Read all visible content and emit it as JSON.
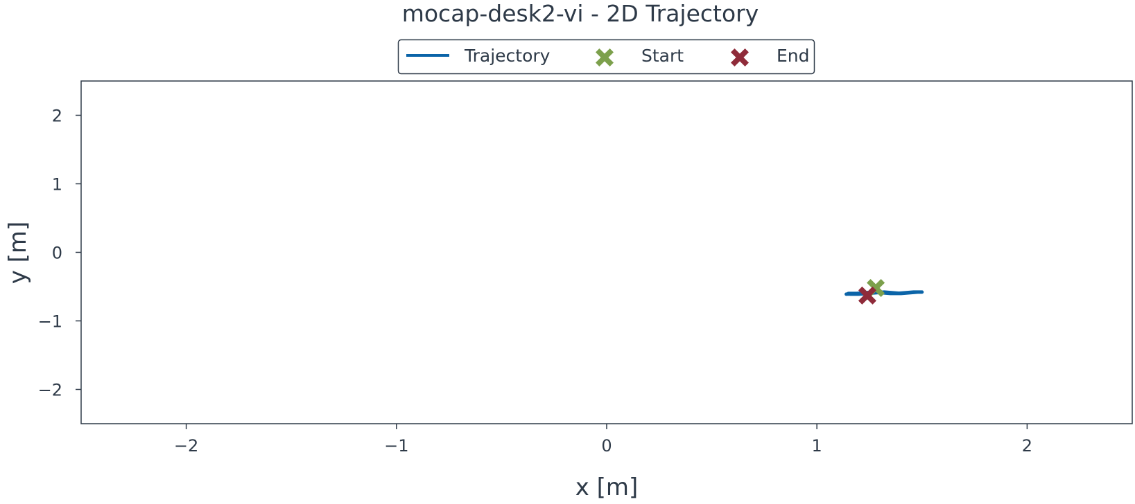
{
  "chart_data": {
    "type": "line",
    "title": "mocap-desk2-vi - 2D Trajectory",
    "xlabel": "x [m]",
    "ylabel": "y [m]",
    "xlim": [
      -2.5,
      2.5
    ],
    "ylim": [
      -2.5,
      2.5
    ],
    "xticks": [
      -2,
      -1,
      0,
      1,
      2
    ],
    "yticks": [
      2,
      1,
      0,
      -1,
      -2
    ],
    "grid": false,
    "legend_position": "top-center",
    "series": [
      {
        "name": "Trajectory",
        "kind": "line",
        "color": "#0b64a8",
        "x": [
          1.14,
          1.18,
          1.22,
          1.26,
          1.3,
          1.34,
          1.38,
          1.42,
          1.46,
          1.5,
          1.48,
          1.44,
          1.4,
          1.36,
          1.32,
          1.28,
          1.24,
          1.2,
          1.16,
          1.15,
          1.19,
          1.23,
          1.27,
          1.31,
          1.35,
          1.39,
          1.43,
          1.47,
          1.49
        ],
        "y": [
          -0.61,
          -0.6,
          -0.6,
          -0.59,
          -0.58,
          -0.59,
          -0.6,
          -0.59,
          -0.58,
          -0.58,
          -0.58,
          -0.59,
          -0.6,
          -0.59,
          -0.58,
          -0.59,
          -0.6,
          -0.61,
          -0.61,
          -0.6,
          -0.6,
          -0.59,
          -0.58,
          -0.59,
          -0.6,
          -0.6,
          -0.59,
          -0.58,
          -0.58
        ]
      }
    ],
    "markers": [
      {
        "name": "Start",
        "x": 1.28,
        "y": -0.52,
        "color": "#7ca04c",
        "symbol": "X"
      },
      {
        "name": "End",
        "x": 1.24,
        "y": -0.63,
        "color": "#8f2b3a",
        "symbol": "X"
      }
    ],
    "colors": {
      "text": "#2e3a48",
      "frame": "#2e3a48"
    }
  }
}
